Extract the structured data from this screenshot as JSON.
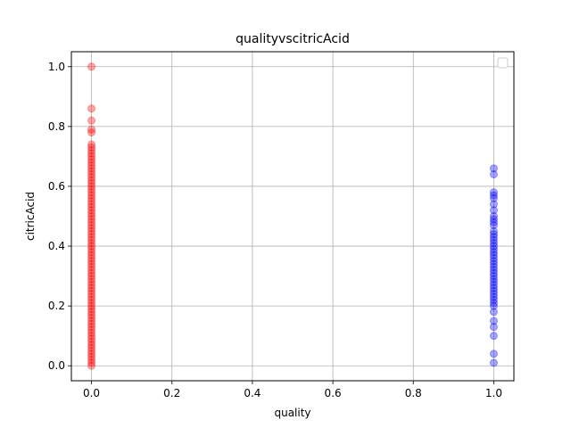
{
  "chart_data": {
    "type": "scatter",
    "title": "qualityvscitricAcid",
    "xlabel": "quality",
    "ylabel": "citricAcid",
    "xlim": [
      -0.05,
      1.05
    ],
    "ylim": [
      -0.05,
      1.05
    ],
    "xticks": [
      "0.0",
      "0.2",
      "0.4",
      "0.6",
      "0.8",
      "1.0"
    ],
    "yticks": [
      "0.0",
      "0.2",
      "0.4",
      "0.6",
      "0.8",
      "1.0"
    ],
    "grid": true,
    "legend": "top-right",
    "series": [
      {
        "color": "#ff0000",
        "x": 0,
        "y": [
          0.0,
          0.01,
          0.02,
          0.03,
          0.04,
          0.05,
          0.06,
          0.07,
          0.08,
          0.09,
          0.1,
          0.11,
          0.12,
          0.13,
          0.14,
          0.15,
          0.16,
          0.17,
          0.18,
          0.19,
          0.2,
          0.21,
          0.22,
          0.23,
          0.24,
          0.25,
          0.26,
          0.27,
          0.28,
          0.29,
          0.3,
          0.31,
          0.32,
          0.33,
          0.34,
          0.35,
          0.36,
          0.37,
          0.38,
          0.39,
          0.4,
          0.41,
          0.42,
          0.43,
          0.44,
          0.45,
          0.46,
          0.47,
          0.48,
          0.49,
          0.5,
          0.51,
          0.52,
          0.53,
          0.54,
          0.55,
          0.56,
          0.57,
          0.58,
          0.59,
          0.6,
          0.61,
          0.62,
          0.63,
          0.64,
          0.65,
          0.66,
          0.67,
          0.68,
          0.69,
          0.7,
          0.71,
          0.72,
          0.73,
          0.74,
          0.78,
          0.79,
          0.82,
          0.86,
          1.0
        ]
      },
      {
        "color": "#0000ff",
        "x": 1,
        "y": [
          0.01,
          0.04,
          0.1,
          0.13,
          0.15,
          0.18,
          0.2,
          0.21,
          0.22,
          0.23,
          0.24,
          0.25,
          0.26,
          0.27,
          0.28,
          0.29,
          0.3,
          0.31,
          0.32,
          0.33,
          0.34,
          0.35,
          0.36,
          0.37,
          0.38,
          0.39,
          0.4,
          0.41,
          0.42,
          0.43,
          0.44,
          0.45,
          0.47,
          0.48,
          0.49,
          0.5,
          0.52,
          0.54,
          0.56,
          0.57,
          0.58,
          0.64,
          0.66
        ]
      }
    ]
  }
}
